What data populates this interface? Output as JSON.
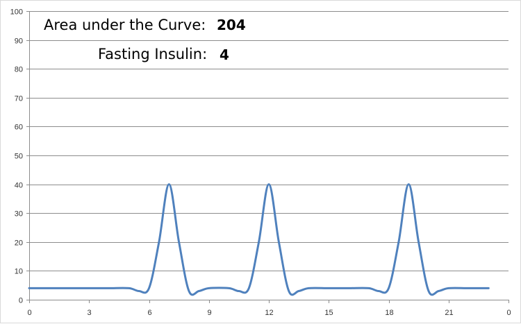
{
  "chart_data": {
    "type": "line",
    "title": "",
    "xlabel": "",
    "ylabel": "",
    "xlim": [
      0,
      24
    ],
    "ylim": [
      0,
      100
    ],
    "x_ticks": [
      "0",
      "3",
      "6",
      "9",
      "12",
      "15",
      "18",
      "21",
      "0"
    ],
    "y_ticks": [
      "0",
      "10",
      "20",
      "30",
      "40",
      "50",
      "60",
      "70",
      "80",
      "90",
      "100"
    ],
    "grid": true,
    "legend": "none",
    "series_color": "#4f81bd",
    "series": [
      {
        "x": [
          0,
          1,
          2,
          3,
          4,
          5,
          5.5,
          6,
          6.5,
          7,
          7.5,
          8,
          8.5,
          9,
          10,
          10.5,
          11,
          11.5,
          12,
          12.5,
          13,
          13.5,
          14,
          15,
          16,
          17,
          17.5,
          18,
          18.5,
          19,
          19.5,
          20,
          20.5,
          21,
          22,
          23
        ],
        "values": [
          4,
          4,
          4,
          4,
          4,
          4,
          3,
          4,
          20,
          40,
          20,
          3,
          3,
          4,
          4,
          3,
          4,
          20,
          40,
          20,
          3,
          3,
          4,
          4,
          4,
          4,
          3,
          4,
          20,
          40,
          20,
          3,
          3,
          4,
          4,
          4
        ]
      }
    ],
    "annotations": [
      {
        "label": "Area under the Curve:",
        "value": "204"
      },
      {
        "label": "Fasting Insulin:",
        "value": "4"
      }
    ]
  }
}
